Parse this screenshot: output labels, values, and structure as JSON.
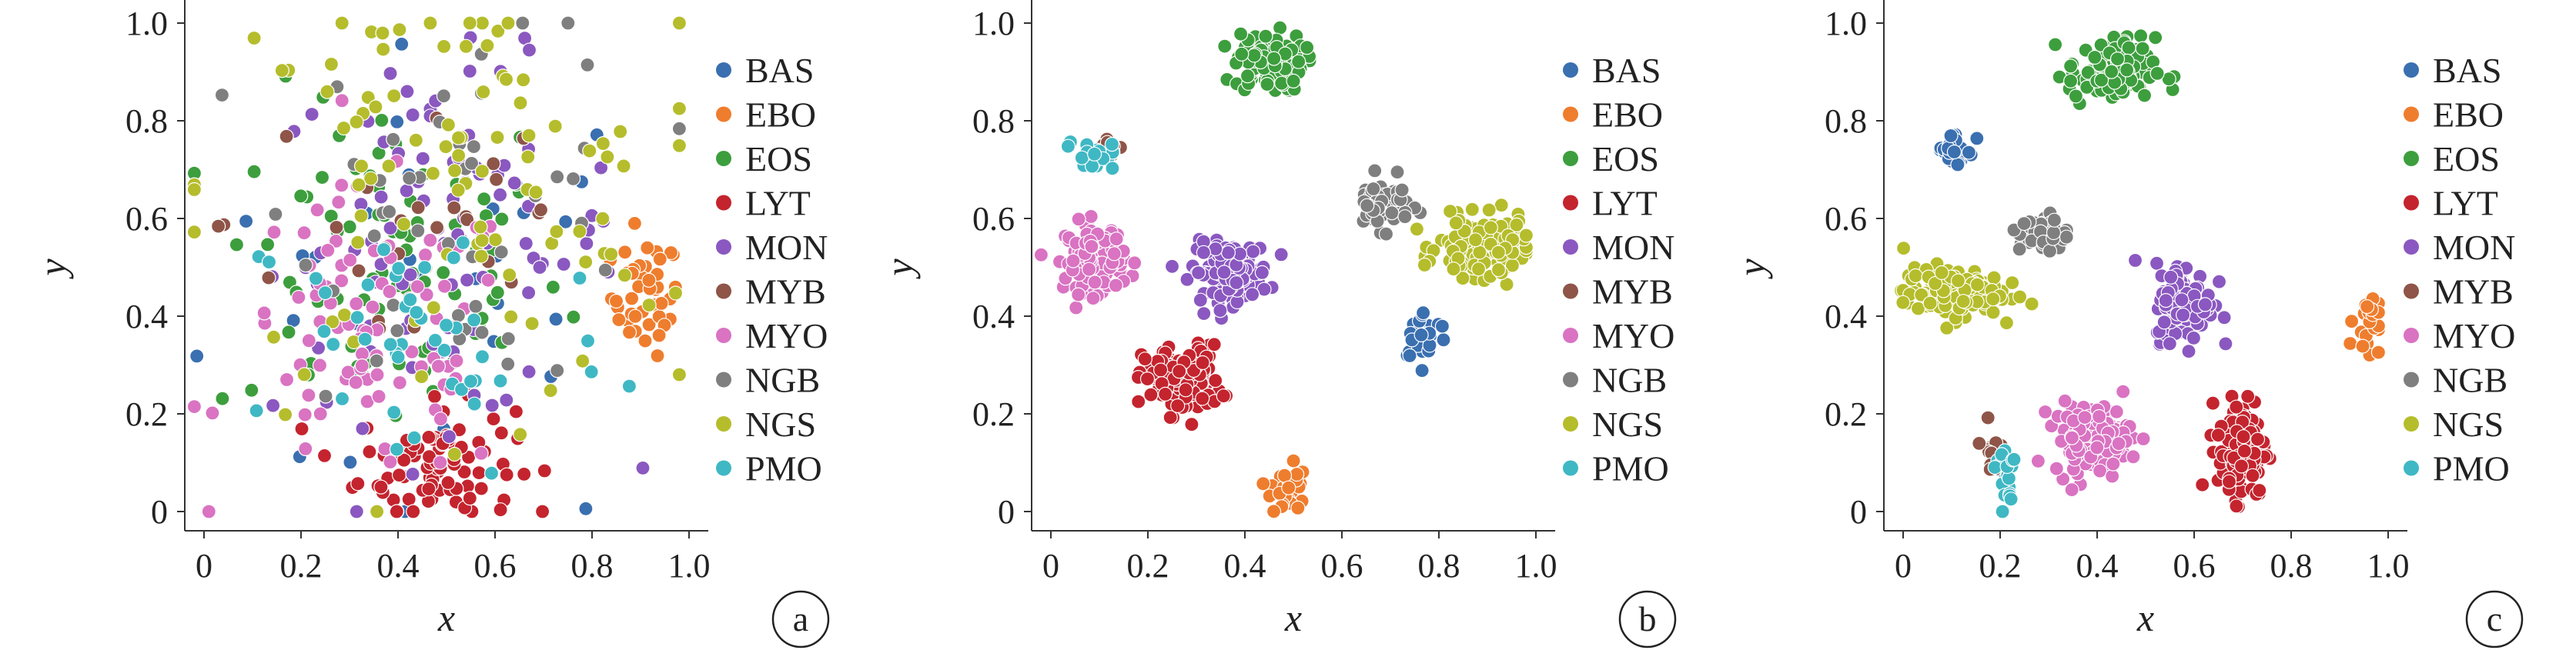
{
  "chart_data": [
    {
      "type": "scatter",
      "panel_label": "a",
      "xlabel": "x",
      "ylabel": "y",
      "xlim": [
        0,
        1.0
      ],
      "ylim": [
        0,
        1.0
      ],
      "xticks": [
        "0",
        "0.2",
        "0.4",
        "0.6",
        "0.8",
        "1.0"
      ],
      "yticks": [
        "0",
        "0.2",
        "0.4",
        "0.6",
        "0.8",
        "1.0"
      ],
      "legend_position": "right",
      "layout_note": "classes heavily overlapping, broadly spread over the unit square",
      "clusters": [
        {
          "class": "BAS",
          "cx": 0.5,
          "cy": 0.45,
          "sx": 0.25,
          "sy": 0.25,
          "n": 30
        },
        {
          "class": "EBO",
          "cx": 0.91,
          "cy": 0.44,
          "sx": 0.035,
          "sy": 0.06,
          "n": 45
        },
        {
          "class": "EOS",
          "cx": 0.38,
          "cy": 0.5,
          "sx": 0.18,
          "sy": 0.18,
          "n": 80
        },
        {
          "class": "LYT",
          "cx": 0.48,
          "cy": 0.1,
          "sx": 0.08,
          "sy": 0.06,
          "n": 90
        },
        {
          "class": "MON",
          "cx": 0.5,
          "cy": 0.55,
          "sx": 0.18,
          "sy": 0.18,
          "n": 90
        },
        {
          "class": "MYB",
          "cx": 0.45,
          "cy": 0.6,
          "sx": 0.2,
          "sy": 0.2,
          "n": 25
        },
        {
          "class": "MYO",
          "cx": 0.35,
          "cy": 0.35,
          "sx": 0.15,
          "sy": 0.15,
          "n": 90
        },
        {
          "class": "NGB",
          "cx": 0.55,
          "cy": 0.65,
          "sx": 0.18,
          "sy": 0.2,
          "n": 50
        },
        {
          "class": "NGS",
          "cx": 0.5,
          "cy": 0.65,
          "sx": 0.25,
          "sy": 0.22,
          "n": 100
        },
        {
          "class": "PMO",
          "cx": 0.45,
          "cy": 0.35,
          "sx": 0.2,
          "sy": 0.15,
          "n": 45
        }
      ]
    },
    {
      "type": "scatter",
      "panel_label": "b",
      "xlabel": "x",
      "ylabel": "y",
      "xlim": [
        0,
        1.0
      ],
      "ylim": [
        0,
        1.0
      ],
      "xticks": [
        "0",
        "0.2",
        "0.4",
        "0.6",
        "0.8",
        "1.0"
      ],
      "yticks": [
        "0",
        "0.2",
        "0.4",
        "0.6",
        "0.8",
        "1.0"
      ],
      "legend_position": "right",
      "clusters": [
        {
          "class": "BAS",
          "cx": 0.77,
          "cy": 0.36,
          "sx": 0.025,
          "sy": 0.025,
          "n": 30
        },
        {
          "class": "EBO",
          "cx": 0.49,
          "cy": 0.05,
          "sx": 0.018,
          "sy": 0.03,
          "n": 30
        },
        {
          "class": "EOS",
          "cx": 0.45,
          "cy": 0.92,
          "sx": 0.035,
          "sy": 0.03,
          "n": 110
        },
        {
          "class": "LYT",
          "cx": 0.27,
          "cy": 0.27,
          "sx": 0.04,
          "sy": 0.035,
          "n": 130
        },
        {
          "class": "MON",
          "cx": 0.37,
          "cy": 0.49,
          "sx": 0.04,
          "sy": 0.03,
          "n": 120
        },
        {
          "class": "MYB",
          "cx": 0.13,
          "cy": 0.74,
          "sx": 0.015,
          "sy": 0.015,
          "n": 10
        },
        {
          "class": "MYO",
          "cx": 0.09,
          "cy": 0.52,
          "sx": 0.03,
          "sy": 0.035,
          "n": 130
        },
        {
          "class": "NGB",
          "cx": 0.68,
          "cy": 0.63,
          "sx": 0.03,
          "sy": 0.025,
          "n": 55
        },
        {
          "class": "NGS",
          "cx": 0.89,
          "cy": 0.54,
          "sx": 0.045,
          "sy": 0.03,
          "n": 160
        },
        {
          "class": "PMO",
          "cx": 0.08,
          "cy": 0.73,
          "sx": 0.025,
          "sy": 0.015,
          "n": 20
        }
      ]
    },
    {
      "type": "scatter",
      "panel_label": "c",
      "xlabel": "x",
      "ylabel": "y",
      "xlim": [
        0,
        1.0
      ],
      "ylim": [
        0,
        1.0
      ],
      "xticks": [
        "0",
        "0.2",
        "0.4",
        "0.6",
        "0.8",
        "1.0"
      ],
      "yticks": [
        "0",
        "0.2",
        "0.4",
        "0.6",
        "0.8",
        "1.0"
      ],
      "legend_position": "right",
      "clusters": [
        {
          "class": "BAS",
          "cx": 0.11,
          "cy": 0.74,
          "sx": 0.02,
          "sy": 0.02,
          "n": 30
        },
        {
          "class": "EBO",
          "cx": 0.96,
          "cy": 0.39,
          "sx": 0.015,
          "sy": 0.03,
          "n": 30
        },
        {
          "class": "EOS",
          "cx": 0.43,
          "cy": 0.9,
          "sx": 0.045,
          "sy": 0.035,
          "n": 110
        },
        {
          "class": "LYT",
          "cx": 0.7,
          "cy": 0.13,
          "sx": 0.025,
          "sy": 0.05,
          "n": 140
        },
        {
          "class": "MON",
          "cx": 0.58,
          "cy": 0.43,
          "sx": 0.03,
          "sy": 0.04,
          "n": 120
        },
        {
          "class": "MYB",
          "cx": 0.18,
          "cy": 0.13,
          "sx": 0.01,
          "sy": 0.025,
          "n": 12
        },
        {
          "class": "MYO",
          "cx": 0.39,
          "cy": 0.15,
          "sx": 0.04,
          "sy": 0.035,
          "n": 140
        },
        {
          "class": "NGB",
          "cx": 0.29,
          "cy": 0.57,
          "sx": 0.025,
          "sy": 0.02,
          "n": 50
        },
        {
          "class": "NGS",
          "cx": 0.1,
          "cy": 0.45,
          "sx": 0.05,
          "sy": 0.025,
          "n": 150
        },
        {
          "class": "PMO",
          "cx": 0.21,
          "cy": 0.08,
          "sx": 0.015,
          "sy": 0.04,
          "n": 20
        }
      ]
    }
  ],
  "legend": {
    "entries": [
      {
        "label": "BAS",
        "color": "#3a6fb0"
      },
      {
        "label": "EBO",
        "color": "#ef7d2e"
      },
      {
        "label": "EOS",
        "color": "#3d9e3d"
      },
      {
        "label": "LYT",
        "color": "#c4242e"
      },
      {
        "label": "MON",
        "color": "#8a58c0"
      },
      {
        "label": "MYB",
        "color": "#8e5548"
      },
      {
        "label": "MYO",
        "color": "#d973c2"
      },
      {
        "label": "NGB",
        "color": "#7f7f7f"
      },
      {
        "label": "NGS",
        "color": "#b5bd2c"
      },
      {
        "label": "PMO",
        "color": "#3fb8c4"
      }
    ]
  }
}
